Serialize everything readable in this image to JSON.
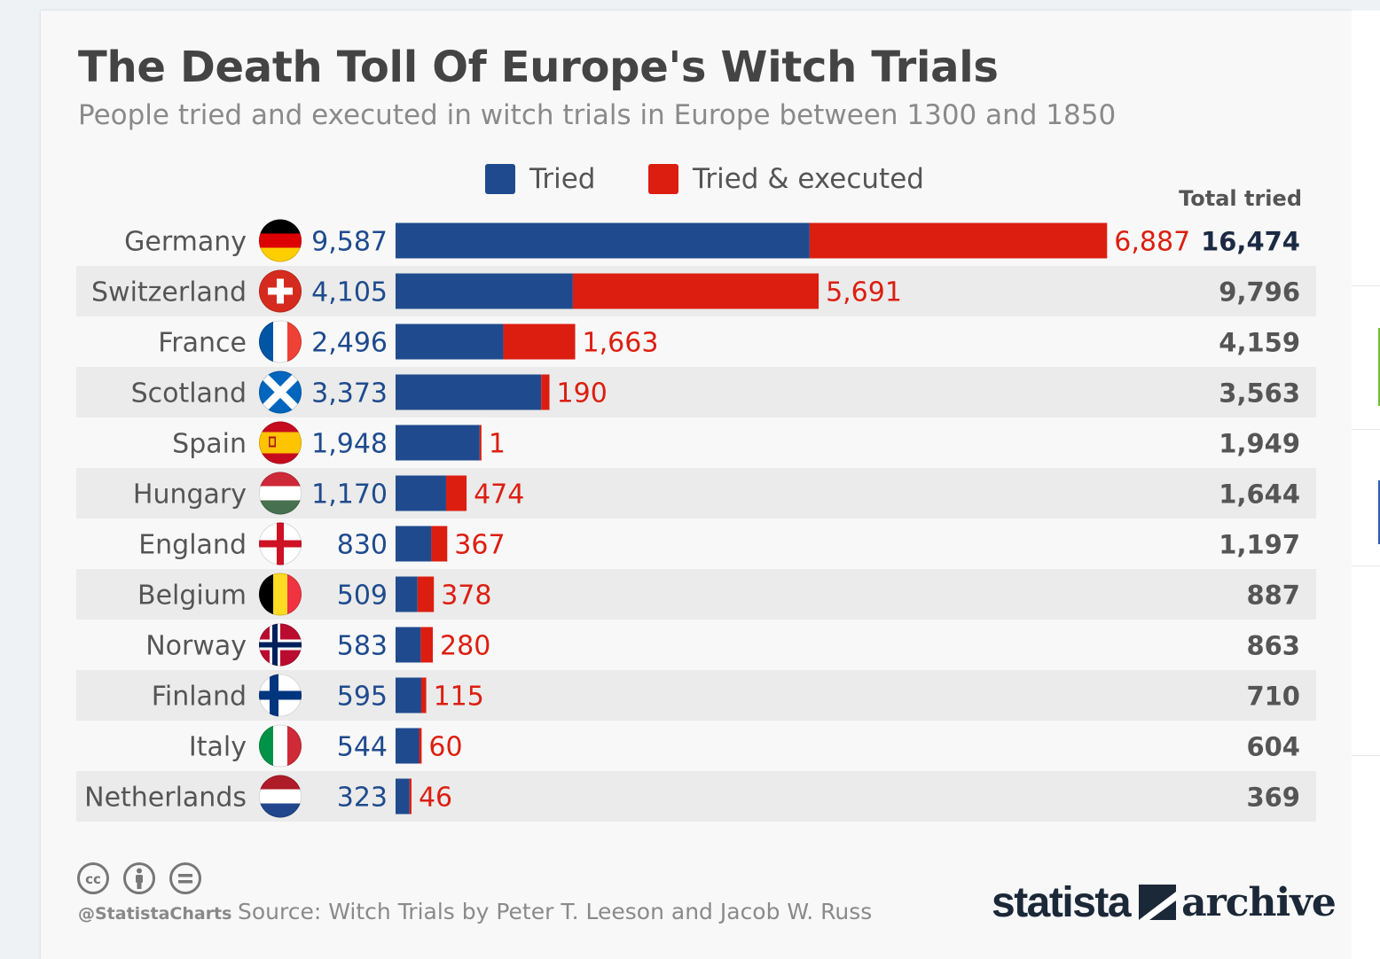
{
  "title": "The Death Toll Of Europe's Witch Trials",
  "subtitle": "People tried and executed in witch trials in Europe between 1300 and 1850",
  "legend": {
    "tried": "Tried",
    "executed": "Tried & executed"
  },
  "total_header": "Total tried",
  "handle": "@StatistaCharts",
  "source": "Source: Witch Trials by Peter T. Leeson and Jacob W. Russ",
  "logo": {
    "brand": "statista",
    "suffix": "archive"
  },
  "colors": {
    "tried": "#1f4b8e",
    "executed": "#dc1e10",
    "row_band": "#ebebeb",
    "total_highlight": "#1b2a44"
  },
  "chart_data": {
    "type": "bar",
    "orientation": "horizontal",
    "stacked": true,
    "categories": [
      "Germany",
      "Switzerland",
      "France",
      "Scotland",
      "Spain",
      "Hungary",
      "England",
      "Belgium",
      "Norway",
      "Finland",
      "Italy",
      "Netherlands"
    ],
    "series": [
      {
        "name": "Tried",
        "values": [
          9587,
          4105,
          2496,
          3373,
          1948,
          1170,
          830,
          509,
          583,
          595,
          544,
          323
        ]
      },
      {
        "name": "Tried & executed",
        "values": [
          6887,
          5691,
          1663,
          190,
          1,
          474,
          367,
          378,
          280,
          115,
          60,
          46
        ]
      }
    ],
    "labels_tried": [
      "9,587",
      "4,105",
      "2,496",
      "3,373",
      "1,948",
      "1,170",
      "830",
      "509",
      "583",
      "595",
      "544",
      "323"
    ],
    "labels_executed": [
      "6,887",
      "5,691",
      "1,663",
      "190",
      "1",
      "474",
      "367",
      "378",
      "280",
      "115",
      "60",
      "46"
    ],
    "totals": [
      16474,
      9796,
      4159,
      3563,
      1949,
      1644,
      1197,
      887,
      863,
      710,
      604,
      369
    ],
    "totals_labels": [
      "16,474",
      "9,796",
      "4,159",
      "3,563",
      "1,949",
      "1,644",
      "1,197",
      "887",
      "863",
      "710",
      "604",
      "369"
    ],
    "flags": [
      "germany-flag-icon",
      "switzerland-flag-icon",
      "france-flag-icon",
      "scotland-flag-icon",
      "spain-flag-icon",
      "hungary-flag-icon",
      "england-flag-icon",
      "belgium-flag-icon",
      "norway-flag-icon",
      "finland-flag-icon",
      "italy-flag-icon",
      "netherlands-flag-icon"
    ],
    "grid": false,
    "legend_position": "top"
  }
}
